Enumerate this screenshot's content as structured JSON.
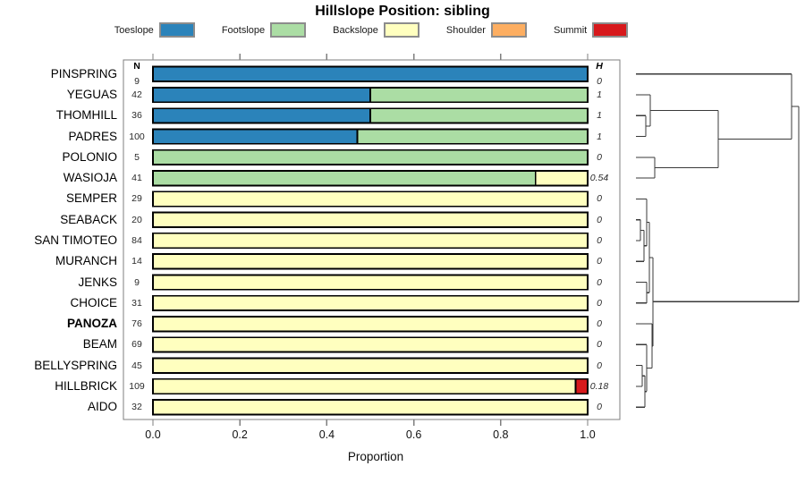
{
  "title": "Hillslope Position: sibling",
  "columns": {
    "n_header": "N",
    "h_header": "H"
  },
  "legend": [
    {
      "label": "Toeslope",
      "color": "#2B83BA"
    },
    {
      "label": "Footslope",
      "color": "#ABDDA4"
    },
    {
      "label": "Backslope",
      "color": "#FFFFBF"
    },
    {
      "label": "Shoulder",
      "color": "#FDAE61"
    },
    {
      "label": "Summit",
      "color": "#D7191C"
    }
  ],
  "chart_data": {
    "type": "bar",
    "stacked": true,
    "orientation": "horizontal",
    "title": "Hillslope Position: sibling",
    "xlabel": "Proportion",
    "xlim": [
      0,
      1
    ],
    "x_ticks": [
      "0.0",
      "0.2",
      "0.4",
      "0.6",
      "0.8",
      "1.0"
    ],
    "x_tick_values": [
      0,
      0.2,
      0.4,
      0.6,
      0.8,
      1.0
    ],
    "categories": [
      "Toeslope",
      "Footslope",
      "Backslope",
      "Shoulder",
      "Summit"
    ],
    "colors": {
      "Toeslope": "#2B83BA",
      "Footslope": "#ABDDA4",
      "Backslope": "#FFFFBF",
      "Shoulder": "#FDAE61",
      "Summit": "#D7191C"
    },
    "rows": [
      {
        "label": "PINSPRING",
        "bold": false,
        "n": "9",
        "h": "0",
        "segments": {
          "Toeslope": 1.0
        }
      },
      {
        "label": "YEGUAS",
        "bold": false,
        "n": "42",
        "h": "1",
        "segments": {
          "Toeslope": 0.5,
          "Footslope": 0.5
        }
      },
      {
        "label": "THOMHILL",
        "bold": false,
        "n": "36",
        "h": "1",
        "segments": {
          "Toeslope": 0.5,
          "Footslope": 0.5
        }
      },
      {
        "label": "PADRES",
        "bold": false,
        "n": "100",
        "h": "1",
        "segments": {
          "Toeslope": 0.47,
          "Footslope": 0.53
        }
      },
      {
        "label": "POLONIO",
        "bold": false,
        "n": "5",
        "h": "0",
        "segments": {
          "Footslope": 1.0
        }
      },
      {
        "label": "WASIOJA",
        "bold": false,
        "n": "41",
        "h": "0.54",
        "segments": {
          "Footslope": 0.88,
          "Backslope": 0.12
        }
      },
      {
        "label": "SEMPER",
        "bold": false,
        "n": "29",
        "h": "0",
        "segments": {
          "Backslope": 1.0
        }
      },
      {
        "label": "SEABACK",
        "bold": false,
        "n": "20",
        "h": "0",
        "segments": {
          "Backslope": 1.0
        }
      },
      {
        "label": "SAN TIMOTEO",
        "bold": false,
        "n": "84",
        "h": "0",
        "segments": {
          "Backslope": 1.0
        }
      },
      {
        "label": "MURANCH",
        "bold": false,
        "n": "14",
        "h": "0",
        "segments": {
          "Backslope": 1.0
        }
      },
      {
        "label": "JENKS",
        "bold": false,
        "n": "9",
        "h": "0",
        "segments": {
          "Backslope": 1.0
        }
      },
      {
        "label": "CHOICE",
        "bold": false,
        "n": "31",
        "h": "0",
        "segments": {
          "Backslope": 1.0
        }
      },
      {
        "label": "PANOZA",
        "bold": true,
        "n": "76",
        "h": "0",
        "segments": {
          "Backslope": 1.0
        }
      },
      {
        "label": "BEAM",
        "bold": false,
        "n": "69",
        "h": "0",
        "segments": {
          "Backslope": 1.0
        }
      },
      {
        "label": "BELLYSPRING",
        "bold": false,
        "n": "45",
        "h": "0",
        "segments": {
          "Backslope": 1.0
        }
      },
      {
        "label": "HILLBRICK",
        "bold": false,
        "n": "109",
        "h": "0.18",
        "segments": {
          "Backslope": 0.972,
          "Summit": 0.028
        }
      },
      {
        "label": "AIDO",
        "bold": false,
        "n": "32",
        "h": "0",
        "segments": {
          "Backslope": 1.0
        }
      }
    ]
  },
  "dendrogram": {
    "orientation": "right",
    "segments": [
      [
        711,
        82.8,
        885,
        82.8
      ],
      [
        711,
        106,
        727,
        106
      ],
      [
        711,
        129.3,
        722,
        129.3
      ],
      [
        711,
        152.6,
        722,
        152.6
      ],
      [
        722,
        129.3,
        722,
        152.6
      ],
      [
        722,
        141,
        727,
        141
      ],
      [
        727,
        106,
        727,
        141
      ],
      [
        727,
        123.5,
        803,
        123.5
      ],
      [
        711,
        175.9,
        732,
        175.9
      ],
      [
        711,
        199.1,
        732,
        199.1
      ],
      [
        732,
        175.9,
        732,
        199.1
      ],
      [
        732,
        187.5,
        803,
        187.5
      ],
      [
        803,
        123.5,
        803,
        187.5
      ],
      [
        803,
        155.5,
        885,
        155.5
      ],
      [
        885,
        82.8,
        885,
        155.5
      ],
      [
        885,
        119,
        893,
        119
      ],
      [
        711,
        222.4,
        723,
        222.4
      ],
      [
        711,
        245.7,
        716,
        245.7
      ],
      [
        711,
        269,
        716,
        269
      ],
      [
        716,
        245.7,
        716,
        269
      ],
      [
        716,
        257.4,
        720,
        257.4
      ],
      [
        711,
        292.2,
        720,
        292.2
      ],
      [
        720,
        257.4,
        720,
        292.2
      ],
      [
        720,
        274.8,
        723,
        274.8
      ],
      [
        723,
        222.4,
        723,
        274.8
      ],
      [
        723,
        248.6,
        726,
        248.6
      ],
      [
        711,
        315.5,
        723,
        315.5
      ],
      [
        711,
        338.8,
        723,
        338.8
      ],
      [
        723,
        315.5,
        723,
        338.8
      ],
      [
        723,
        327.2,
        726,
        327.2
      ],
      [
        726,
        248.6,
        726,
        327.2
      ],
      [
        726,
        287.9,
        730,
        287.9
      ],
      [
        711,
        362.1,
        729,
        362.1
      ],
      [
        711,
        385.3,
        723,
        385.3
      ],
      [
        711,
        408.6,
        718,
        408.6
      ],
      [
        711,
        431.9,
        718,
        431.9
      ],
      [
        718,
        408.6,
        718,
        431.9
      ],
      [
        718,
        420.2,
        721,
        420.2
      ],
      [
        711,
        455.2,
        721,
        455.2
      ],
      [
        721,
        420.2,
        721,
        455.2
      ],
      [
        721,
        437.7,
        723,
        437.7
      ],
      [
        723,
        385.3,
        723,
        437.7
      ],
      [
        723,
        411.5,
        729,
        411.5
      ],
      [
        729,
        362.1,
        729,
        411.5
      ],
      [
        729,
        386.8,
        730,
        386.8
      ],
      [
        730,
        287.9,
        730,
        386.8
      ],
      [
        730,
        337.3,
        893,
        337.3
      ],
      [
        893,
        119,
        893,
        337.3
      ]
    ]
  }
}
